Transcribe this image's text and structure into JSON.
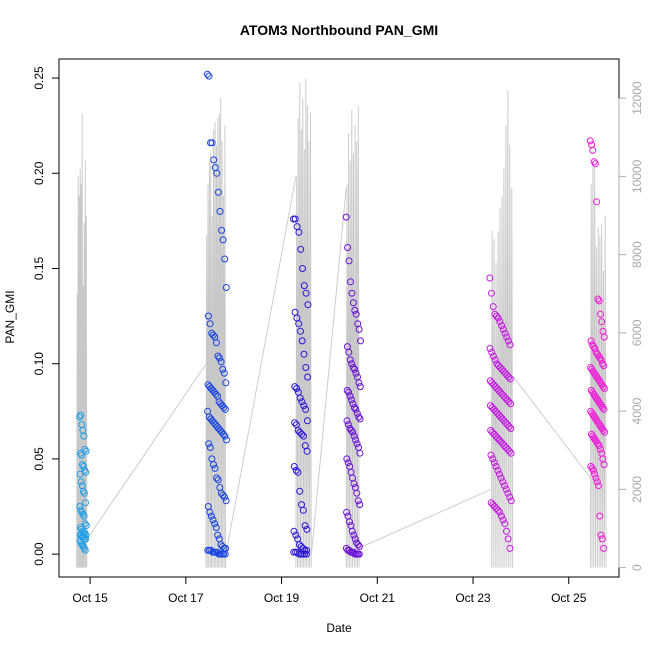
{
  "chart_data": {
    "type": "scatter",
    "title": "ATOM3 Northbound PAN_GMI",
    "xlabel": "Date",
    "ylabel": "PAN_GMI",
    "x_tick_labels": [
      "Oct 15",
      "Oct 17",
      "Oct 19",
      "Oct 21",
      "Oct 23",
      "Oct 25"
    ],
    "x_tick_days": [
      15,
      17,
      19,
      21,
      23,
      25
    ],
    "xlim_days": [
      14.35,
      26.05
    ],
    "ylim": [
      -0.012,
      0.26
    ],
    "y_ticks": [
      0.0,
      0.05,
      0.1,
      0.15,
      0.2,
      0.25
    ],
    "y_tick_labels": [
      "0.00",
      "0.05",
      "0.10",
      "0.15",
      "0.20",
      "0.25"
    ],
    "y2_ticks": [
      0,
      2000,
      4000,
      6000,
      8000,
      10000,
      12000
    ],
    "y2_tick_labels": [
      "0",
      "2000",
      "4000",
      "6000",
      "8000",
      "10000",
      "12000"
    ],
    "y2lim": [
      -240,
      13000
    ],
    "grid": false,
    "legend": "none",
    "colors": {
      "flight_1": "#1E9FE8",
      "flight_2": "#1844E0",
      "flight_3": "#2A16D8",
      "flight_4": "#6A10D6",
      "flight_5": "#C418E0",
      "flight_6": "#EE18D8",
      "altitude_trace": "#c8c8c8"
    },
    "flights": [
      {
        "start": 14.78,
        "end": 14.92,
        "color": "flight_1",
        "values": [
          0.072,
          0.073,
          0.068,
          0.065,
          0.062,
          0.055,
          0.054,
          0.053,
          0.052,
          0.047,
          0.046,
          0.044,
          0.043,
          0.042,
          0.038,
          0.036,
          0.033,
          0.032,
          0.027,
          0.025,
          0.023,
          0.022,
          0.021,
          0.02,
          0.016,
          0.015,
          0.014,
          0.013,
          0.012,
          0.011,
          0.011,
          0.01,
          0.01,
          0.01,
          0.009,
          0.009,
          0.008,
          0.008,
          0.007,
          0.006,
          0.005,
          0.004,
          0.003,
          0.002
        ]
      },
      {
        "start": 17.45,
        "end": 17.85,
        "color": "flight_2",
        "values": [
          0.252,
          0.251,
          0.216,
          0.216,
          0.207,
          0.203,
          0.2,
          0.19,
          0.18,
          0.17,
          0.165,
          0.155,
          0.14,
          0.125,
          0.121,
          0.116,
          0.115,
          0.114,
          0.111,
          0.104,
          0.103,
          0.101,
          0.097,
          0.095,
          0.09,
          0.089,
          0.088,
          0.087,
          0.086,
          0.085,
          0.084,
          0.083,
          0.08,
          0.079,
          0.078,
          0.077,
          0.076,
          0.075,
          0.072,
          0.071,
          0.07,
          0.069,
          0.068,
          0.067,
          0.066,
          0.065,
          0.064,
          0.063,
          0.062,
          0.06,
          0.058,
          0.056,
          0.05,
          0.047,
          0.045,
          0.04,
          0.039,
          0.035,
          0.032,
          0.031,
          0.03,
          0.028,
          0.025,
          0.022,
          0.02,
          0.018,
          0.016,
          0.014,
          0.01,
          0.008,
          0.005,
          0.004,
          0.003,
          0.003,
          0.002,
          0.002,
          0.002,
          0.001,
          0.001,
          0.001,
          0.001,
          0.0,
          0.0,
          0.0,
          0.0,
          0.0
        ]
      },
      {
        "start": 19.25,
        "end": 19.55,
        "color": "flight_3",
        "values": [
          0.176,
          0.176,
          0.172,
          0.169,
          0.16,
          0.15,
          0.141,
          0.137,
          0.131,
          0.127,
          0.124,
          0.121,
          0.117,
          0.112,
          0.105,
          0.098,
          0.093,
          0.088,
          0.087,
          0.085,
          0.082,
          0.08,
          0.078,
          0.076,
          0.07,
          0.069,
          0.068,
          0.065,
          0.064,
          0.063,
          0.062,
          0.057,
          0.054,
          0.046,
          0.044,
          0.043,
          0.033,
          0.026,
          0.023,
          0.015,
          0.013,
          0.012,
          0.01,
          0.008,
          0.005,
          0.004,
          0.003,
          0.002,
          0.002,
          0.001,
          0.001,
          0.001,
          0.0,
          0.0,
          0.0,
          0.0,
          0.0
        ]
      },
      {
        "start": 20.35,
        "end": 20.65,
        "color": "flight_4",
        "values": [
          0.177,
          0.161,
          0.154,
          0.143,
          0.137,
          0.132,
          0.128,
          0.126,
          0.121,
          0.118,
          0.112,
          0.109,
          0.106,
          0.102,
          0.1,
          0.098,
          0.097,
          0.095,
          0.093,
          0.09,
          0.088,
          0.086,
          0.085,
          0.083,
          0.081,
          0.079,
          0.077,
          0.076,
          0.074,
          0.072,
          0.071,
          0.07,
          0.068,
          0.066,
          0.065,
          0.064,
          0.062,
          0.06,
          0.058,
          0.056,
          0.053,
          0.05,
          0.048,
          0.046,
          0.043,
          0.04,
          0.037,
          0.035,
          0.032,
          0.028,
          0.026,
          0.022,
          0.02,
          0.017,
          0.015,
          0.012,
          0.01,
          0.008,
          0.006,
          0.005,
          0.004,
          0.003,
          0.002,
          0.002,
          0.001,
          0.001,
          0.001,
          0.0,
          0.0,
          0.0,
          0.0
        ]
      },
      {
        "start": 23.35,
        "end": 23.8,
        "color": "flight_5",
        "values": [
          0.145,
          0.137,
          0.13,
          0.126,
          0.125,
          0.124,
          0.122,
          0.12,
          0.118,
          0.116,
          0.114,
          0.112,
          0.11,
          0.108,
          0.106,
          0.104,
          0.102,
          0.1,
          0.099,
          0.098,
          0.097,
          0.096,
          0.095,
          0.094,
          0.093,
          0.092,
          0.091,
          0.09,
          0.089,
          0.088,
          0.087,
          0.086,
          0.085,
          0.084,
          0.083,
          0.082,
          0.081,
          0.08,
          0.079,
          0.078,
          0.077,
          0.076,
          0.075,
          0.074,
          0.073,
          0.072,
          0.071,
          0.07,
          0.069,
          0.068,
          0.067,
          0.066,
          0.065,
          0.064,
          0.063,
          0.062,
          0.061,
          0.06,
          0.059,
          0.058,
          0.057,
          0.056,
          0.055,
          0.054,
          0.053,
          0.052,
          0.05,
          0.048,
          0.046,
          0.044,
          0.042,
          0.04,
          0.038,
          0.036,
          0.034,
          0.032,
          0.03,
          0.028,
          0.027,
          0.026,
          0.025,
          0.024,
          0.023,
          0.022,
          0.02,
          0.018,
          0.016,
          0.012,
          0.008,
          0.003
        ]
      },
      {
        "start": 25.45,
        "end": 25.75,
        "color": "flight_6",
        "values": [
          0.217,
          0.215,
          0.212,
          0.206,
          0.205,
          0.185,
          0.134,
          0.133,
          0.126,
          0.122,
          0.117,
          0.114,
          0.112,
          0.11,
          0.109,
          0.108,
          0.106,
          0.105,
          0.104,
          0.103,
          0.102,
          0.1,
          0.099,
          0.098,
          0.097,
          0.096,
          0.095,
          0.094,
          0.093,
          0.092,
          0.091,
          0.09,
          0.089,
          0.088,
          0.087,
          0.086,
          0.085,
          0.084,
          0.083,
          0.082,
          0.081,
          0.08,
          0.079,
          0.078,
          0.077,
          0.076,
          0.075,
          0.074,
          0.073,
          0.072,
          0.071,
          0.07,
          0.069,
          0.068,
          0.067,
          0.066,
          0.065,
          0.064,
          0.063,
          0.062,
          0.061,
          0.06,
          0.059,
          0.058,
          0.057,
          0.055,
          0.053,
          0.05,
          0.047,
          0.046,
          0.045,
          0.044,
          0.042,
          0.04,
          0.038,
          0.036,
          0.02,
          0.01,
          0.008,
          0.003
        ]
      }
    ],
    "altitude_trace": {
      "bursts": [
        {
          "start": 14.72,
          "end": 14.93,
          "peaks": [
            7000,
            10000,
            9500,
            10200,
            9800,
            11600,
            7200,
            8800,
            10400,
            9000
          ]
        },
        {
          "start": 17.42,
          "end": 17.83,
          "peaks": [
            8500,
            9800,
            10400,
            10600,
            9000,
            11200,
            11400,
            10800,
            11500,
            11600,
            12000,
            10900,
            9500,
            11300
          ]
        },
        {
          "start": 19.3,
          "end": 19.62,
          "peaks": [
            10000,
            11500,
            12400,
            11200,
            12000,
            10700,
            12500,
            11800,
            10900,
            11600
          ]
        },
        {
          "start": 20.35,
          "end": 20.62,
          "peaks": [
            9800,
            11100,
            10400,
            11700,
            10600,
            11300,
            10900,
            11800
          ]
        },
        {
          "start": 23.38,
          "end": 23.83,
          "peaks": [
            8600,
            8400,
            7800,
            8600,
            9200,
            9500,
            10200,
            11300,
            12200,
            10800,
            9700
          ]
        },
        {
          "start": 25.45,
          "end": 25.78,
          "peaks": [
            9800,
            10400,
            10300,
            8200,
            8700,
            8500,
            8800,
            7600,
            9000
          ]
        }
      ],
      "transits": [
        {
          "from_day": 14.92,
          "from_value": 700,
          "to_day": 17.42,
          "to_value": 5200
        },
        {
          "from_day": 17.83,
          "from_value": 300,
          "to_day": 19.3,
          "to_value": 10000
        },
        {
          "from_day": 19.62,
          "from_value": 300,
          "to_day": 20.35,
          "to_value": 9700
        },
        {
          "from_day": 20.62,
          "from_value": 500,
          "to_day": 23.38,
          "to_value": 2000
        },
        {
          "from_day": 23.83,
          "from_value": 4900,
          "to_day": 25.45,
          "to_value": 2300
        }
      ]
    }
  }
}
